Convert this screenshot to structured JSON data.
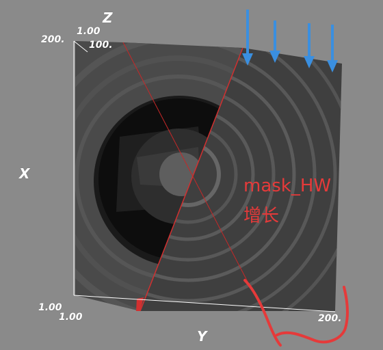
{
  "viewer": {
    "background": "#8a8a8a",
    "axes": {
      "z_label": "Z",
      "x_label": "X",
      "y_label": "Y",
      "tick_top_x": "200.",
      "tick_top_y": "1.00",
      "tick_top_z": "100.",
      "tick_bottom_x": "1.00",
      "tick_bottom_y_start": "1.00",
      "tick_bottom_y_end": "200."
    }
  },
  "annotation": {
    "line1": "mask_HW",
    "line2": "增长",
    "color": "#e53a3a"
  },
  "arrows": {
    "count": 4,
    "color": "#3a8fe0",
    "icon": "arrow-down-icon"
  }
}
